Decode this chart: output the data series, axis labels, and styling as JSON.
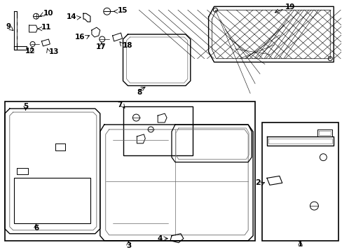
{
  "bg_color": "#ffffff",
  "line_color": "#000000",
  "gray_color": "#666666",
  "fig_width": 4.89,
  "fig_height": 3.6,
  "dpi": 100
}
